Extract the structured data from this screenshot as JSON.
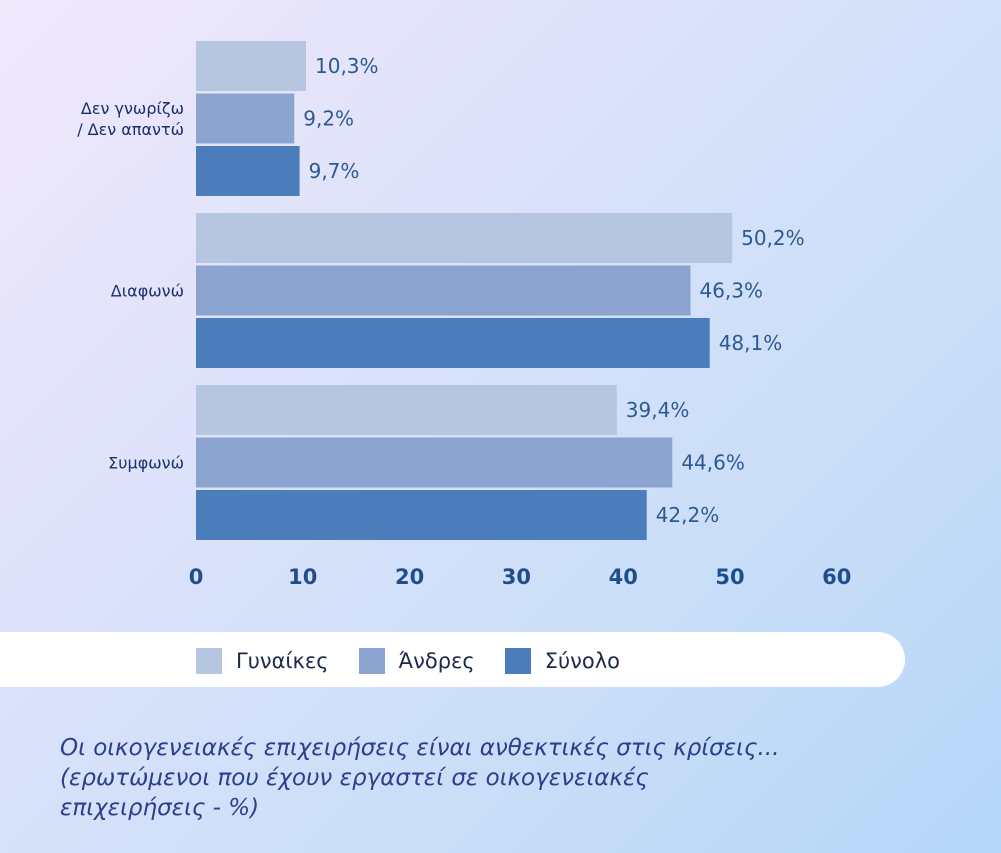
{
  "chart_data": {
    "type": "bar",
    "orientation": "horizontal",
    "categories": [
      "Δεν γνωρίζω / Δεν απαντώ",
      "Διαφωνώ",
      "Συμφωνώ"
    ],
    "category_label_lines": [
      [
        "Δεν γνωρίζω",
        "/ Δεν απαντώ"
      ],
      [
        "Διαφωνώ"
      ],
      [
        "Συμφωνώ"
      ]
    ],
    "series": [
      {
        "name": "Γυναίκες",
        "values": [
          10.3,
          50.2,
          39.4
        ],
        "labels": [
          "10,3%",
          "50,2%",
          "39,4%"
        ],
        "color": "#b7c6e0"
      },
      {
        "name": "Άνδρες",
        "values": [
          9.2,
          46.3,
          44.6
        ],
        "labels": [
          "9,2%",
          "46,3%",
          "44,6%"
        ],
        "color": "#8aa4cf"
      },
      {
        "name": "Σύνολο",
        "values": [
          9.7,
          48.1,
          42.2
        ],
        "labels": [
          "9,7%",
          "48,1%",
          "42,2%"
        ],
        "color": "#4a7dba"
      }
    ],
    "xlim": [
      0,
      60
    ],
    "x_ticks": [
      "0",
      "10",
      "20",
      "30",
      "40",
      "50",
      "60"
    ],
    "grid": false,
    "legend_position": "bottom"
  },
  "caption": {
    "line1": "Οι οικογενειακές επιχειρήσεις είναι ανθεκτικές στις κρίσεις...",
    "line2": "(ερωτώμενοι που έχουν εργαστεί σε οικογενειακές",
    "line3": "επιχειρήσεις - %)"
  },
  "colors": {
    "tick_label": "#1f4e8c",
    "value_label": "#2c5a92",
    "category_label": "#1a2f6b",
    "caption": "#2b3f8c"
  }
}
